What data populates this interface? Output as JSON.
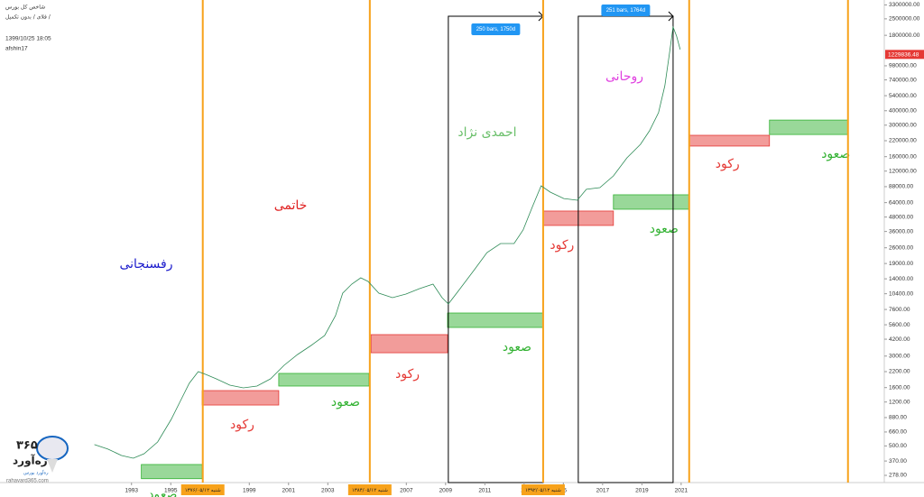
{
  "chart_data": {
    "type": "line",
    "title": "شاخص کل بورس",
    "subtitle": "فلای / بدون تکمیل /",
    "timestamp": "1399/10/25 18:05",
    "author": "afshin17",
    "log_scale": true,
    "grid": false,
    "xlim": [
      1986.3,
      2031.35
    ],
    "ylim": [
      240.7,
      3640000
    ],
    "xticks": [
      1993,
      1995,
      1999,
      2001,
      2003,
      2007,
      2009,
      2011,
      {
        "value": 2013,
        "label": "20"
      },
      {
        "value": 2015,
        "label": "15"
      },
      2017,
      2019,
      2021
    ],
    "yticks": [
      {
        "value": 3300000,
        "label": "3300000.00"
      },
      {
        "value": 2500000,
        "label": "2500000.00"
      },
      {
        "value": 1800000,
        "label": "1800000.00"
      },
      {
        "value": 980000,
        "label": "980000.00"
      },
      {
        "value": 740000,
        "label": "740000.00"
      },
      {
        "value": 540000,
        "label": "540000.00"
      },
      {
        "value": 400000,
        "label": "400000.00"
      },
      {
        "value": 300000,
        "label": "300000.00"
      },
      {
        "value": 220000,
        "label": "220000.00"
      },
      {
        "value": 160000,
        "label": "160000.00"
      },
      {
        "value": 120000,
        "label": "120000.00"
      },
      {
        "value": 88000,
        "label": "88000.00"
      },
      {
        "value": 64000,
        "label": "64000.00"
      },
      {
        "value": 48000,
        "label": "48000.00"
      },
      {
        "value": 36000,
        "label": "36000.00"
      },
      {
        "value": 26000,
        "label": "26000.00"
      },
      {
        "value": 19000,
        "label": "19000.00"
      },
      {
        "value": 14000,
        "label": "14000.00"
      },
      {
        "value": 10400,
        "label": "10400.00"
      },
      {
        "value": 7600,
        "label": "7600.00"
      },
      {
        "value": 5600,
        "label": "5600.00"
      },
      {
        "value": 4200,
        "label": "4200.00"
      },
      {
        "value": 3000,
        "label": "3000.00"
      },
      {
        "value": 2200,
        "label": "2200.00"
      },
      {
        "value": 1600,
        "label": "1600.00"
      },
      {
        "value": 1200,
        "label": "1200.00"
      },
      {
        "value": 880,
        "label": "880.00"
      },
      {
        "value": 660,
        "label": "660.00"
      },
      {
        "value": 500,
        "label": "500.00"
      },
      {
        "value": 370,
        "label": "370.00"
      },
      {
        "value": 278,
        "label": "278.00"
      }
    ],
    "x": [
      1991.11,
      1991.8,
      1992.49,
      1993.09,
      1993.64,
      1994.33,
      1995.02,
      1995.48,
      1995.94,
      1996.4,
      1996.77,
      1997.32,
      1998.01,
      1998.7,
      1999.39,
      2000.08,
      2000.77,
      2001.46,
      2002.15,
      2002.84,
      2003.39,
      2003.76,
      2004.22,
      2004.68,
      2005.05,
      2005.6,
      2006.29,
      2006.98,
      2007.67,
      2008.36,
      2008.82,
      2009.14,
      2009.74,
      2010.43,
      2011.11,
      2011.8,
      2012.49,
      2012.95,
      2013.41,
      2013.87,
      2014.33,
      2015.02,
      2015.71,
      2016.17,
      2016.86,
      2017.55,
      2018.24,
      2018.93,
      2019.39,
      2019.85,
      2020.17,
      2020.4,
      2020.59,
      2020.77,
      2020.95
    ],
    "series": [
      {
        "color": "#2e8b57",
        "values": [
          513,
          469,
          413,
          391,
          428,
          541,
          848,
          1216,
          1741,
          2199,
          2084,
          1905,
          1680,
          1592,
          1649,
          1905,
          2496,
          3097,
          3707,
          4519,
          6713,
          10520,
          12590,
          14290,
          13300,
          10520,
          9616,
          10330,
          11510,
          12590,
          9616,
          8472,
          11510,
          16480,
          23650,
          28310,
          28310,
          37070,
          58080,
          89540,
          78890,
          69500,
          67140,
          83370,
          86300,
          109100,
          156300,
          204600,
          268000,
          384600,
          659000,
          1236000,
          2123000,
          1774000,
          1355000
        ]
      }
    ],
    "last_price": 1229836.48,
    "period_lines": [
      {
        "x": 1996.63,
        "label": "شنبه ۱۳۷۶/۰۵/۱۲"
      },
      {
        "x": 2005.14,
        "label": "شنبه ۱۳۸۴/۰۵/۱۲"
      },
      {
        "x": 2013.97,
        "label": "شنبه ۱۳۹۲/۰۵/۱۲"
      },
      {
        "x": 2021.41
      },
      {
        "x": 2029.5
      }
    ],
    "period_color": "#f7a21b",
    "zones": [
      {
        "label": "صعود",
        "color": "#33b233",
        "x": [
          1993.5,
          1996.6
        ],
        "y": [
          260,
          345
        ]
      },
      {
        "label": "رکود",
        "color": "#e53935",
        "x": [
          1996.6,
          2000.5
        ],
        "y": [
          1130,
          1507
        ]
      },
      {
        "label": "صعود",
        "color": "#33b233",
        "x": [
          2000.5,
          2005.1
        ],
        "y": [
          1650,
          2123
        ]
      },
      {
        "label": "رکود",
        "color": "#e53935",
        "x": [
          2005.2,
          2009.1
        ],
        "y": [
          3206,
          4600
        ]
      },
      {
        "label": "صعود",
        "color": "#33b233",
        "x": [
          2009.1,
          2013.97
        ],
        "y": [
          5310,
          7080
        ]
      },
      {
        "label": "رکود",
        "color": "#e53935",
        "x": [
          2013.97,
          2017.55
        ],
        "y": [
          40600,
          54100
        ]
      },
      {
        "label": "صعود",
        "color": "#33b233",
        "x": [
          2017.55,
          2021.41
        ],
        "y": [
          56100,
          74800
        ]
      },
      {
        "label": "رکود",
        "color": "#e53935",
        "x": [
          2021.41,
          2025.5
        ],
        "y": [
          197700,
          245000
        ]
      },
      {
        "label": "صعود",
        "color": "#33b233",
        "x": [
          2025.5,
          2029.5
        ],
        "y": [
          249000,
          332000
        ]
      }
    ],
    "presidents": [
      {
        "label": "رفسنجانی",
        "color": "#1a1acc"
      },
      {
        "label": "خاتمی",
        "color": "#e02020"
      },
      {
        "label": "احمدی نژاد",
        "color": "#6abf6a"
      },
      {
        "label": "روحانی",
        "color": "#e040e0"
      }
    ],
    "measures": [
      {
        "label": "250 bars, 1750d",
        "x": [
          2009.14,
          2013.97
        ]
      },
      {
        "label": "251 bars, 1764d",
        "x": [
          2015.76,
          2020.59
        ]
      }
    ],
    "watermark": {
      "number": "۳۶۵",
      "name": "ره‌آورد",
      "tagline": "ره‌آورد بورس",
      "url": "rahavard365.com"
    }
  }
}
